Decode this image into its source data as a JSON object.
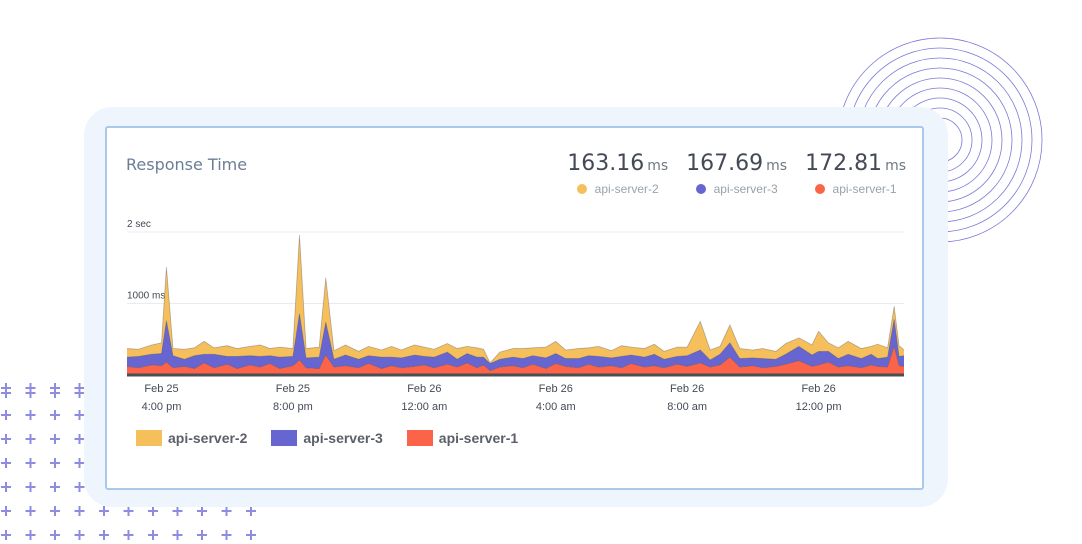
{
  "chart_data": {
    "type": "area",
    "stacked": true,
    "title": "Response Time",
    "summary": [
      {
        "value": "163.16",
        "unit": "ms",
        "series": "api-server-2",
        "color": "#f5bf5c"
      },
      {
        "value": "167.69",
        "unit": "ms",
        "series": "api-server-3",
        "color": "#6766d1"
      },
      {
        "value": "172.81",
        "unit": "ms",
        "series": "api-server-1",
        "color": "#fb6448"
      }
    ],
    "y_ticks": [
      {
        "value": 1000,
        "label": "1000 ms"
      },
      {
        "value": 2000,
        "label": "2 sec"
      }
    ],
    "ylim": [
      0,
      2000
    ],
    "x_ticks": [
      {
        "x": 2,
        "label_date": "Feb 25",
        "label_time": "4:00 pm"
      },
      {
        "x": 6,
        "label_date": "Feb 25",
        "label_time": "8:00 pm"
      },
      {
        "x": 10,
        "label_date": "Feb 26",
        "label_time": "12:00 am"
      },
      {
        "x": 14,
        "label_date": "Feb 26",
        "label_time": "4:00 am"
      },
      {
        "x": 18,
        "label_date": "Feb 26",
        "label_time": "8:00 am"
      },
      {
        "x": 22,
        "label_date": "Feb 26",
        "label_time": "12:00 pm"
      }
    ],
    "xlim": [
      0.95,
      24.6
    ],
    "grid": true,
    "legend_position": "bottom-left",
    "series": [
      {
        "name": "api-server-1",
        "color": "#fb6448",
        "points": [
          [
            0.95,
            120
          ],
          [
            1.3,
            100
          ],
          [
            1.7,
            140
          ],
          [
            2.0,
            130
          ],
          [
            2.15,
            180
          ],
          [
            2.35,
            100
          ],
          [
            2.7,
            120
          ],
          [
            3.0,
            90
          ],
          [
            3.3,
            170
          ],
          [
            3.6,
            100
          ],
          [
            4.0,
            150
          ],
          [
            4.3,
            90
          ],
          [
            4.7,
            140
          ],
          [
            5.0,
            110
          ],
          [
            5.3,
            160
          ],
          [
            5.6,
            90
          ],
          [
            6.0,
            130
          ],
          [
            6.2,
            210
          ],
          [
            6.4,
            100
          ],
          [
            6.8,
            90
          ],
          [
            7.0,
            280
          ],
          [
            7.25,
            110
          ],
          [
            7.6,
            130
          ],
          [
            8.0,
            100
          ],
          [
            8.3,
            160
          ],
          [
            8.7,
            90
          ],
          [
            9.0,
            130
          ],
          [
            9.3,
            100
          ],
          [
            9.7,
            120
          ],
          [
            10.0,
            140
          ],
          [
            10.3,
            100
          ],
          [
            10.7,
            150
          ],
          [
            11.0,
            110
          ],
          [
            11.3,
            170
          ],
          [
            11.6,
            100
          ],
          [
            11.8,
            140
          ],
          [
            12.0,
            60
          ],
          [
            12.3,
            110
          ],
          [
            12.7,
            130
          ],
          [
            13.0,
            100
          ],
          [
            13.3,
            150
          ],
          [
            13.7,
            90
          ],
          [
            14.0,
            160
          ],
          [
            14.3,
            120
          ],
          [
            14.7,
            100
          ],
          [
            15.0,
            150
          ],
          [
            15.3,
            110
          ],
          [
            15.7,
            130
          ],
          [
            16.0,
            100
          ],
          [
            16.3,
            160
          ],
          [
            16.7,
            110
          ],
          [
            17.0,
            130
          ],
          [
            17.3,
            100
          ],
          [
            17.7,
            150
          ],
          [
            18.0,
            120
          ],
          [
            18.4,
            170
          ],
          [
            18.7,
            110
          ],
          [
            19.0,
            140
          ],
          [
            19.3,
            250
          ],
          [
            19.6,
            110
          ],
          [
            20.0,
            130
          ],
          [
            20.3,
            100
          ],
          [
            20.7,
            120
          ],
          [
            21.0,
            150
          ],
          [
            21.4,
            200
          ],
          [
            21.8,
            120
          ],
          [
            22.0,
            140
          ],
          [
            22.3,
            180
          ],
          [
            22.6,
            110
          ],
          [
            22.9,
            130
          ],
          [
            23.3,
            100
          ],
          [
            23.6,
            140
          ],
          [
            23.8,
            120
          ],
          [
            24.1,
            110
          ],
          [
            24.3,
            400
          ],
          [
            24.45,
            130
          ],
          [
            24.6,
            120
          ]
        ]
      },
      {
        "name": "api-server-3",
        "color": "#6766d1",
        "points": [
          [
            0.95,
            130
          ],
          [
            1.3,
            160
          ],
          [
            1.7,
            150
          ],
          [
            2.0,
            170
          ],
          [
            2.15,
            580
          ],
          [
            2.35,
            170
          ],
          [
            2.7,
            100
          ],
          [
            3.0,
            180
          ],
          [
            3.3,
            120
          ],
          [
            3.6,
            190
          ],
          [
            4.0,
            110
          ],
          [
            4.3,
            170
          ],
          [
            4.7,
            130
          ],
          [
            5.0,
            150
          ],
          [
            5.3,
            110
          ],
          [
            5.6,
            160
          ],
          [
            6.0,
            130
          ],
          [
            6.2,
            650
          ],
          [
            6.4,
            140
          ],
          [
            6.8,
            160
          ],
          [
            7.0,
            460
          ],
          [
            7.25,
            110
          ],
          [
            7.6,
            150
          ],
          [
            8.0,
            120
          ],
          [
            8.3,
            110
          ],
          [
            8.7,
            160
          ],
          [
            9.0,
            120
          ],
          [
            9.3,
            140
          ],
          [
            9.7,
            160
          ],
          [
            10.0,
            120
          ],
          [
            10.3,
            150
          ],
          [
            10.7,
            170
          ],
          [
            11.0,
            110
          ],
          [
            11.3,
            130
          ],
          [
            11.6,
            150
          ],
          [
            11.8,
            110
          ],
          [
            12.0,
            100
          ],
          [
            12.3,
            110
          ],
          [
            12.7,
            120
          ],
          [
            13.0,
            130
          ],
          [
            13.3,
            120
          ],
          [
            13.7,
            150
          ],
          [
            14.0,
            140
          ],
          [
            14.3,
            110
          ],
          [
            14.7,
            130
          ],
          [
            15.0,
            120
          ],
          [
            15.3,
            150
          ],
          [
            15.7,
            110
          ],
          [
            16.0,
            160
          ],
          [
            16.3,
            120
          ],
          [
            16.7,
            140
          ],
          [
            17.0,
            160
          ],
          [
            17.3,
            120
          ],
          [
            17.7,
            110
          ],
          [
            18.0,
            150
          ],
          [
            18.4,
            180
          ],
          [
            18.7,
            100
          ],
          [
            19.0,
            150
          ],
          [
            19.3,
            200
          ],
          [
            19.6,
            120
          ],
          [
            20.0,
            110
          ],
          [
            20.3,
            130
          ],
          [
            20.7,
            100
          ],
          [
            21.0,
            140
          ],
          [
            21.4,
            200
          ],
          [
            21.8,
            160
          ],
          [
            22.0,
            190
          ],
          [
            22.3,
            150
          ],
          [
            22.6,
            120
          ],
          [
            22.9,
            160
          ],
          [
            23.3,
            130
          ],
          [
            23.6,
            150
          ],
          [
            23.8,
            110
          ],
          [
            24.1,
            140
          ],
          [
            24.3,
            380
          ],
          [
            24.45,
            130
          ],
          [
            24.6,
            150
          ]
        ]
      },
      {
        "name": "api-server-2",
        "color": "#f5bf5c",
        "points": [
          [
            0.95,
            120
          ],
          [
            1.3,
            100
          ],
          [
            1.7,
            130
          ],
          [
            2.0,
            150
          ],
          [
            2.15,
            750
          ],
          [
            2.35,
            100
          ],
          [
            2.7,
            140
          ],
          [
            3.0,
            110
          ],
          [
            3.3,
            180
          ],
          [
            3.6,
            90
          ],
          [
            4.0,
            150
          ],
          [
            4.3,
            110
          ],
          [
            4.7,
            130
          ],
          [
            5.0,
            160
          ],
          [
            5.3,
            100
          ],
          [
            5.6,
            140
          ],
          [
            6.0,
            110
          ],
          [
            6.2,
            1100
          ],
          [
            6.4,
            130
          ],
          [
            6.8,
            140
          ],
          [
            7.0,
            620
          ],
          [
            7.25,
            120
          ],
          [
            7.6,
            140
          ],
          [
            8.0,
            110
          ],
          [
            8.3,
            130
          ],
          [
            8.7,
            100
          ],
          [
            9.0,
            150
          ],
          [
            9.3,
            110
          ],
          [
            9.7,
            140
          ],
          [
            10.0,
            130
          ],
          [
            10.3,
            110
          ],
          [
            10.7,
            120
          ],
          [
            11.0,
            150
          ],
          [
            11.3,
            100
          ],
          [
            11.6,
            130
          ],
          [
            11.8,
            110
          ],
          [
            12.0,
            10
          ],
          [
            12.3,
            100
          ],
          [
            12.7,
            120
          ],
          [
            13.0,
            140
          ],
          [
            13.3,
            110
          ],
          [
            13.7,
            150
          ],
          [
            14.0,
            170
          ],
          [
            14.3,
            120
          ],
          [
            14.7,
            140
          ],
          [
            15.0,
            110
          ],
          [
            15.3,
            140
          ],
          [
            15.7,
            100
          ],
          [
            16.0,
            150
          ],
          [
            16.3,
            110
          ],
          [
            16.7,
            120
          ],
          [
            17.0,
            140
          ],
          [
            17.3,
            110
          ],
          [
            17.7,
            130
          ],
          [
            18.0,
            120
          ],
          [
            18.4,
            400
          ],
          [
            18.7,
            140
          ],
          [
            19.0,
            110
          ],
          [
            19.3,
            250
          ],
          [
            19.6,
            140
          ],
          [
            20.0,
            110
          ],
          [
            20.3,
            140
          ],
          [
            20.7,
            110
          ],
          [
            21.0,
            150
          ],
          [
            21.4,
            120
          ],
          [
            21.8,
            140
          ],
          [
            22.0,
            280
          ],
          [
            22.3,
            120
          ],
          [
            22.6,
            150
          ],
          [
            22.9,
            180
          ],
          [
            23.3,
            140
          ],
          [
            23.6,
            110
          ],
          [
            23.8,
            200
          ],
          [
            24.1,
            130
          ],
          [
            24.3,
            180
          ],
          [
            24.45,
            150
          ],
          [
            24.6,
            80
          ]
        ]
      }
    ]
  },
  "legend": {
    "items": [
      {
        "label": "api-server-2",
        "color": "#f5bf5c"
      },
      {
        "label": "api-server-3",
        "color": "#6766d1"
      },
      {
        "label": "api-server-1",
        "color": "#fb6448"
      }
    ]
  },
  "decor": {
    "ring_color": "#7b79d8",
    "plus_color": "#8d8ce0",
    "card_border_color": "#a9c8ec",
    "outer_card_color": "#eef5fd"
  }
}
